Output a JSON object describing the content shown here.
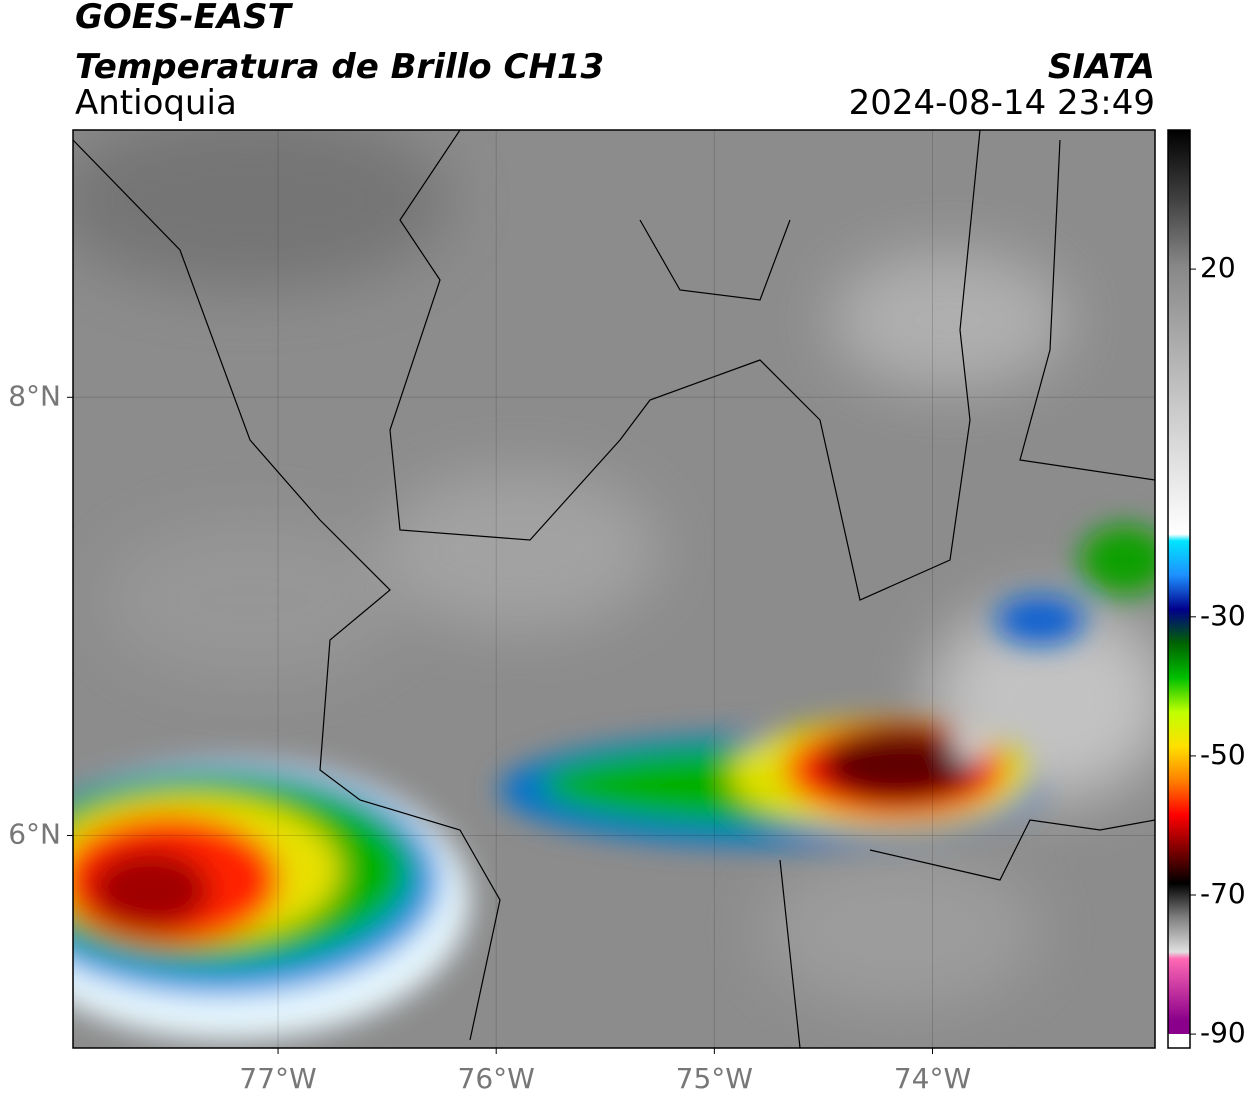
{
  "header": {
    "title": "GOES-EAST",
    "subtitle": "Temperatura de Brillo CH13",
    "region": "Antioquia",
    "source": "SIATA",
    "timestamp": "2024-08-14 23:49"
  },
  "map": {
    "xlim": [
      -77.94,
      -72.98
    ],
    "ylim": [
      5.03,
      9.22
    ],
    "xticks": [
      {
        "value": -77,
        "label": "77°W"
      },
      {
        "value": -76,
        "label": "76°W"
      },
      {
        "value": -75,
        "label": "75°W"
      },
      {
        "value": -74,
        "label": "74°W"
      }
    ],
    "yticks": [
      {
        "value": 8,
        "label": "8°N"
      },
      {
        "value": 6,
        "label": "6°N"
      }
    ],
    "grid": true
  },
  "colorbar": {
    "clim": [
      -92,
      40
    ],
    "ticks": [
      20,
      -30,
      -50,
      -70,
      -90
    ],
    "colormap": [
      {
        "value": 40,
        "color": "#000000"
      },
      {
        "value": 30,
        "color": "#404040"
      },
      {
        "value": 20,
        "color": "#888888"
      },
      {
        "value": 0,
        "color": "#c8c8c8"
      },
      {
        "value": -19,
        "color": "#ffffff"
      },
      {
        "value": -20,
        "color": "#00e5ff"
      },
      {
        "value": -25,
        "color": "#1e90ff"
      },
      {
        "value": -30,
        "color": "#00008b"
      },
      {
        "value": -35,
        "color": "#006400"
      },
      {
        "value": -40,
        "color": "#00c000"
      },
      {
        "value": -45,
        "color": "#c0ff00"
      },
      {
        "value": -50,
        "color": "#ffe000"
      },
      {
        "value": -55,
        "color": "#ff8000"
      },
      {
        "value": -60,
        "color": "#ff0000"
      },
      {
        "value": -65,
        "color": "#800000"
      },
      {
        "value": -70,
        "color": "#000000"
      },
      {
        "value": -75,
        "color": "#808080"
      },
      {
        "value": -80,
        "color": "#e0e0e0"
      },
      {
        "value": -81,
        "color": "#ff69b4"
      },
      {
        "value": -90,
        "color": "#8b008b"
      }
    ]
  }
}
